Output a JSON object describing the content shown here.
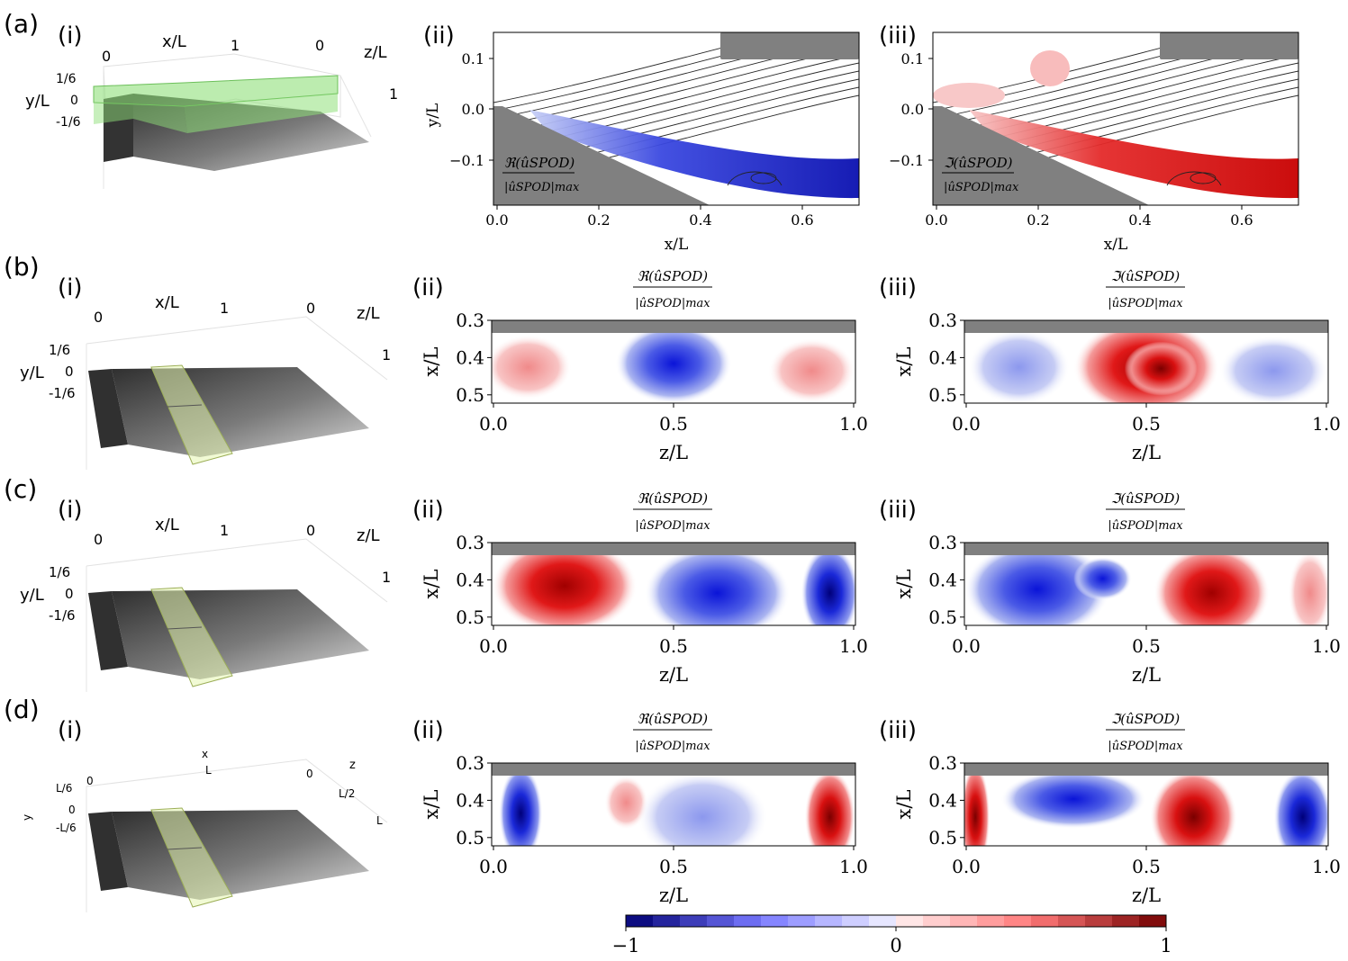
{
  "figure": {
    "rows": [
      {
        "label": "(a)",
        "sub_i": "(i)",
        "sub_ii": "(ii)",
        "sub_iii": "(iii)",
        "schematic": {
          "x_label": "x/L",
          "z_label": "z/L",
          "y_label": "y/L",
          "x_ticks": [
            "0",
            "1"
          ],
          "z_ticks": [
            "0",
            "1"
          ],
          "y_ticks": [
            "1/6",
            "0",
            "-1/6"
          ]
        },
        "real_label_num": "ℜ(ûSPOD)",
        "real_label_den": "|ûSPOD|max",
        "imag_label_num": "ℑ(ûSPOD)",
        "imag_label_den": "|ûSPOD|max",
        "xlabel": "x/L",
        "ylabel": "y/L",
        "x_ticks": [
          "0.0",
          "0.2",
          "0.4",
          "0.6"
        ],
        "y_ticks": [
          "0.1",
          "0.0",
          "−0.1"
        ]
      },
      {
        "label": "(b)",
        "sub_i": "(i)",
        "sub_ii": "(ii)",
        "sub_iii": "(iii)",
        "schematic": {
          "x_label": "x/L",
          "z_label": "z/L",
          "y_label": "y/L",
          "x_ticks": [
            "0",
            "1"
          ],
          "z_ticks": [
            "0",
            "1"
          ],
          "y_ticks": [
            "1/6",
            "0",
            "-1/6"
          ]
        },
        "real_label_num": "ℜ(ûSPOD)",
        "real_label_den": "|ûSPOD|max",
        "imag_label_num": "ℑ(ûSPOD)",
        "imag_label_den": "|ûSPOD|max",
        "xlabel": "z/L",
        "ylabel": "x/L",
        "x_ticks": [
          "0.0",
          "0.5",
          "1.0"
        ],
        "y_ticks": [
          "0.3",
          "0.4",
          "0.5"
        ]
      },
      {
        "label": "(c)",
        "sub_i": "(i)",
        "sub_ii": "(ii)",
        "sub_iii": "(iii)",
        "schematic": {
          "x_label": "x/L",
          "z_label": "z/L",
          "y_label": "y/L",
          "x_ticks": [
            "0",
            "1"
          ],
          "z_ticks": [
            "0",
            "1"
          ],
          "y_ticks": [
            "1/6",
            "0",
            "-1/6"
          ]
        },
        "real_label_num": "ℜ(ûSPOD)",
        "real_label_den": "|ûSPOD|max",
        "imag_label_num": "ℑ(ûSPOD)",
        "imag_label_den": "|ûSPOD|max",
        "xlabel": "z/L",
        "ylabel": "x/L",
        "x_ticks": [
          "0.0",
          "0.5",
          "1.0"
        ],
        "y_ticks": [
          "0.3",
          "0.4",
          "0.5"
        ]
      },
      {
        "label": "(d)",
        "sub_i": "(i)",
        "sub_ii": "(ii)",
        "sub_iii": "(iii)",
        "schematic": {
          "x_label": "x",
          "x_label2": "L",
          "z_label": "z",
          "y_label": "y",
          "x_ticks": [
            "0"
          ],
          "z_ticks": [
            "0",
            "L/2",
            "L"
          ],
          "y_ticks": [
            "L/6",
            "0",
            "-L/6"
          ]
        },
        "real_label_num": "ℜ(ûSPOD)",
        "real_label_den": "|ûSPOD|max",
        "imag_label_num": "ℑ(ûSPOD)",
        "imag_label_den": "|ûSPOD|max",
        "xlabel": "z/L",
        "ylabel": "x/L",
        "x_ticks": [
          "0.0",
          "0.5",
          "1.0"
        ],
        "y_ticks": [
          "0.3",
          "0.4",
          "0.5"
        ]
      }
    ],
    "colorbar": {
      "ticks": [
        "−1",
        "0",
        "1"
      ],
      "min": -1,
      "max": 1,
      "levels": 20
    }
  },
  "colors": {
    "negative": "#08306b",
    "positive": "#8b0000",
    "wall": "#808080",
    "highlight": "#8fe07a"
  }
}
